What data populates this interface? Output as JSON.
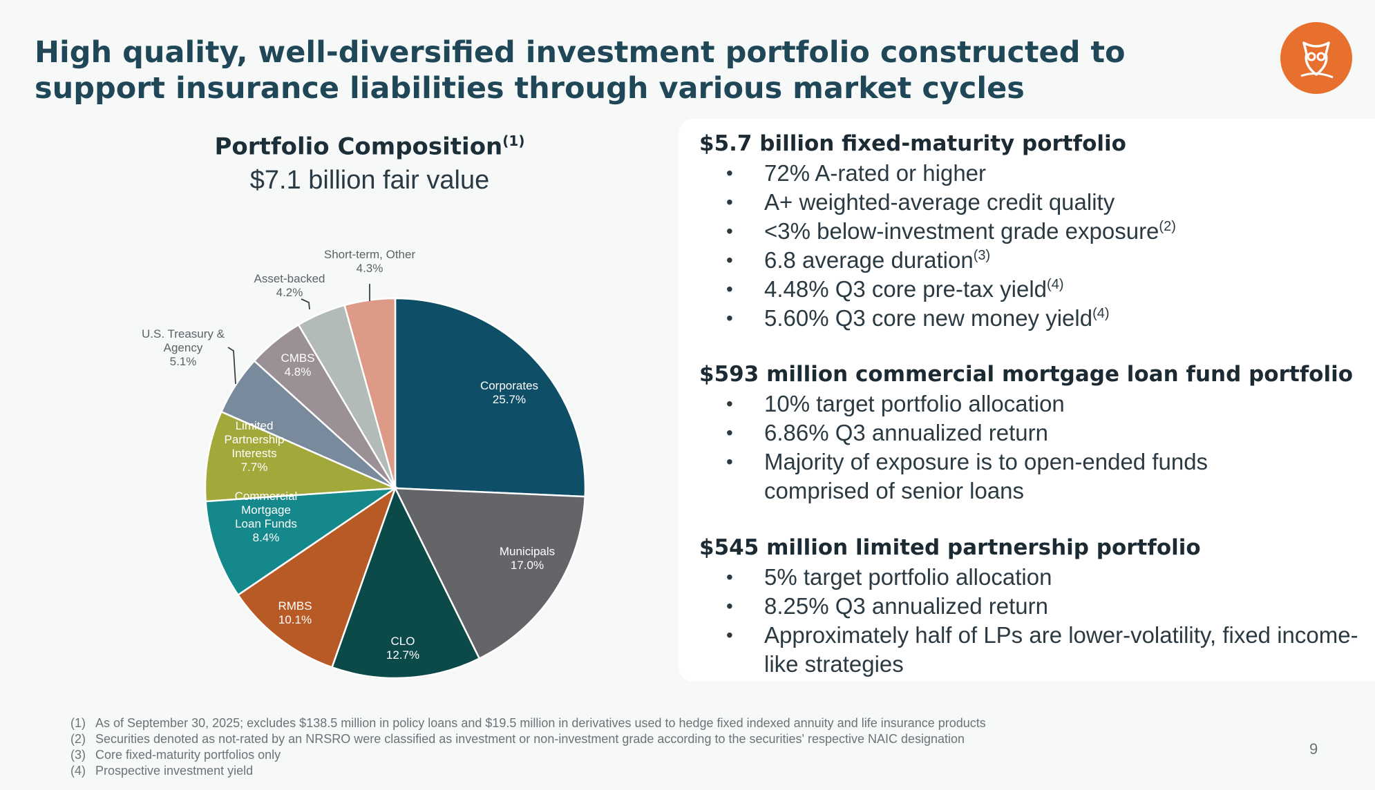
{
  "title": "High quality, well-diversified investment portfolio constructed to support insurance liabilities through various market cycles",
  "logo": {
    "icon": "owl-logo-icon",
    "color": "#e8702e"
  },
  "chart_data": {
    "type": "pie",
    "title": "Portfolio Composition",
    "title_footnote": "(1)",
    "subtitle": "$7.1 billion fair value",
    "unit": "%",
    "slices": [
      {
        "label": "Corporates",
        "value": 25.7,
        "display": "25.7%",
        "color": "#0f4e67"
      },
      {
        "label": "Municipals",
        "value": 17.0,
        "display": "17.0%",
        "color": "#636569"
      },
      {
        "label": "CLO",
        "value": 12.7,
        "display": "12.7%",
        "color": "#0c4a4a"
      },
      {
        "label": "RMBS",
        "value": 10.1,
        "display": "10.1%",
        "color": "#b85a26"
      },
      {
        "label": "Commercial Mortgage Loan Funds",
        "value": 8.4,
        "display": "8.4%",
        "color": "#14888a"
      },
      {
        "label": "Limited Partnership Interests",
        "value": 7.7,
        "display": "7.7%",
        "color": "#a3a83a"
      },
      {
        "label": "U.S. Treasury & Agency",
        "value": 5.1,
        "display": "5.1%",
        "color": "#788a9c"
      },
      {
        "label": "CMBS",
        "value": 4.8,
        "display": "4.8%",
        "color": "#9a9096"
      },
      {
        "label": "Asset-backed",
        "value": 4.2,
        "display": "4.2%",
        "color": "#b2bbb8"
      },
      {
        "label": "Short-term, Other",
        "value": 4.3,
        "display": "4.3%",
        "color": "#dd9a86"
      }
    ]
  },
  "sections": [
    {
      "heading": "$5.7 billion fixed-maturity portfolio",
      "bullets": [
        {
          "text": "72% A-rated or higher",
          "note": ""
        },
        {
          "text": "A+ weighted-average credit quality",
          "note": ""
        },
        {
          "text": "<3% below-investment grade exposure",
          "note": "(2)"
        },
        {
          "text": "6.8 average duration",
          "note": "(3)"
        },
        {
          "text": "4.48% Q3 core pre-tax yield",
          "note": "(4)"
        },
        {
          "text": "5.60% Q3 core new money yield",
          "note": "(4)"
        }
      ]
    },
    {
      "heading": "$593 million commercial mortgage loan fund portfolio",
      "bullets": [
        {
          "text": "10% target portfolio allocation",
          "note": ""
        },
        {
          "text": "6.86% Q3 annualized return",
          "note": ""
        },
        {
          "text": "Majority of exposure is to open-ended funds comprised of senior loans",
          "note": ""
        }
      ]
    },
    {
      "heading": "$545 million limited partnership portfolio",
      "bullets": [
        {
          "text": "5% target portfolio allocation",
          "note": ""
        },
        {
          "text": "8.25% Q3 annualized return",
          "note": ""
        },
        {
          "text": "Approximately half of LPs are lower-volatility, fixed income-like strategies",
          "note": ""
        }
      ]
    }
  ],
  "footnotes": [
    {
      "num": "(1)",
      "text": "As of September 30, 2025; excludes $138.5 million in policy loans and $19.5 million in derivatives used to hedge fixed indexed annuity and life insurance products"
    },
    {
      "num": "(2)",
      "text": "Securities denoted as not-rated by an NRSRO were classified as investment or non-investment grade according to the securities' respective NAIC designation"
    },
    {
      "num": "(3)",
      "text": "Core fixed-maturity portfolios only"
    },
    {
      "num": "(4)",
      "text": "Prospective investment yield"
    }
  ],
  "page_number": "9"
}
